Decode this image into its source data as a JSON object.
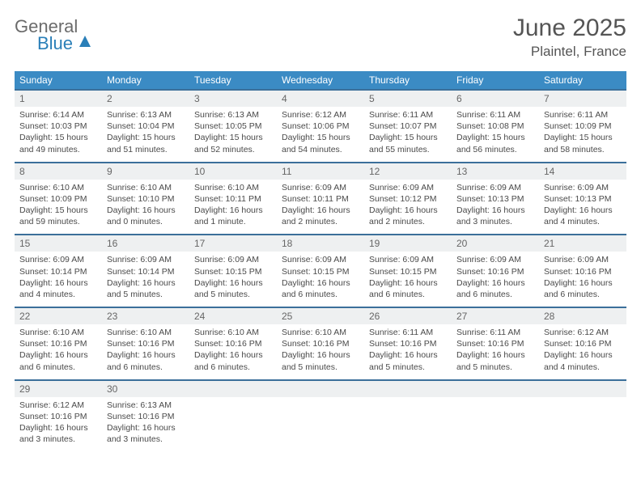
{
  "brand": {
    "part1": "General",
    "part2": "Blue"
  },
  "title": {
    "month": "June 2025",
    "location": "Plaintel, France"
  },
  "colors": {
    "header_bg": "#3b8bc4",
    "header_text": "#ffffff",
    "daynum_bg": "#eef0f1",
    "row_border": "#3b6f9a",
    "text": "#4a4a4a",
    "brand_blue": "#2a7fb8"
  },
  "weekdays": [
    "Sunday",
    "Monday",
    "Tuesday",
    "Wednesday",
    "Thursday",
    "Friday",
    "Saturday"
  ],
  "days": [
    {
      "n": "1",
      "sr": "6:14 AM",
      "ss": "10:03 PM",
      "dl": "15 hours and 49 minutes."
    },
    {
      "n": "2",
      "sr": "6:13 AM",
      "ss": "10:04 PM",
      "dl": "15 hours and 51 minutes."
    },
    {
      "n": "3",
      "sr": "6:13 AM",
      "ss": "10:05 PM",
      "dl": "15 hours and 52 minutes."
    },
    {
      "n": "4",
      "sr": "6:12 AM",
      "ss": "10:06 PM",
      "dl": "15 hours and 54 minutes."
    },
    {
      "n": "5",
      "sr": "6:11 AM",
      "ss": "10:07 PM",
      "dl": "15 hours and 55 minutes."
    },
    {
      "n": "6",
      "sr": "6:11 AM",
      "ss": "10:08 PM",
      "dl": "15 hours and 56 minutes."
    },
    {
      "n": "7",
      "sr": "6:11 AM",
      "ss": "10:09 PM",
      "dl": "15 hours and 58 minutes."
    },
    {
      "n": "8",
      "sr": "6:10 AM",
      "ss": "10:09 PM",
      "dl": "15 hours and 59 minutes."
    },
    {
      "n": "9",
      "sr": "6:10 AM",
      "ss": "10:10 PM",
      "dl": "16 hours and 0 minutes."
    },
    {
      "n": "10",
      "sr": "6:10 AM",
      "ss": "10:11 PM",
      "dl": "16 hours and 1 minute."
    },
    {
      "n": "11",
      "sr": "6:09 AM",
      "ss": "10:11 PM",
      "dl": "16 hours and 2 minutes."
    },
    {
      "n": "12",
      "sr": "6:09 AM",
      "ss": "10:12 PM",
      "dl": "16 hours and 2 minutes."
    },
    {
      "n": "13",
      "sr": "6:09 AM",
      "ss": "10:13 PM",
      "dl": "16 hours and 3 minutes."
    },
    {
      "n": "14",
      "sr": "6:09 AM",
      "ss": "10:13 PM",
      "dl": "16 hours and 4 minutes."
    },
    {
      "n": "15",
      "sr": "6:09 AM",
      "ss": "10:14 PM",
      "dl": "16 hours and 4 minutes."
    },
    {
      "n": "16",
      "sr": "6:09 AM",
      "ss": "10:14 PM",
      "dl": "16 hours and 5 minutes."
    },
    {
      "n": "17",
      "sr": "6:09 AM",
      "ss": "10:15 PM",
      "dl": "16 hours and 5 minutes."
    },
    {
      "n": "18",
      "sr": "6:09 AM",
      "ss": "10:15 PM",
      "dl": "16 hours and 6 minutes."
    },
    {
      "n": "19",
      "sr": "6:09 AM",
      "ss": "10:15 PM",
      "dl": "16 hours and 6 minutes."
    },
    {
      "n": "20",
      "sr": "6:09 AM",
      "ss": "10:16 PM",
      "dl": "16 hours and 6 minutes."
    },
    {
      "n": "21",
      "sr": "6:09 AM",
      "ss": "10:16 PM",
      "dl": "16 hours and 6 minutes."
    },
    {
      "n": "22",
      "sr": "6:10 AM",
      "ss": "10:16 PM",
      "dl": "16 hours and 6 minutes."
    },
    {
      "n": "23",
      "sr": "6:10 AM",
      "ss": "10:16 PM",
      "dl": "16 hours and 6 minutes."
    },
    {
      "n": "24",
      "sr": "6:10 AM",
      "ss": "10:16 PM",
      "dl": "16 hours and 6 minutes."
    },
    {
      "n": "25",
      "sr": "6:10 AM",
      "ss": "10:16 PM",
      "dl": "16 hours and 5 minutes."
    },
    {
      "n": "26",
      "sr": "6:11 AM",
      "ss": "10:16 PM",
      "dl": "16 hours and 5 minutes."
    },
    {
      "n": "27",
      "sr": "6:11 AM",
      "ss": "10:16 PM",
      "dl": "16 hours and 5 minutes."
    },
    {
      "n": "28",
      "sr": "6:12 AM",
      "ss": "10:16 PM",
      "dl": "16 hours and 4 minutes."
    },
    {
      "n": "29",
      "sr": "6:12 AM",
      "ss": "10:16 PM",
      "dl": "16 hours and 3 minutes."
    },
    {
      "n": "30",
      "sr": "6:13 AM",
      "ss": "10:16 PM",
      "dl": "16 hours and 3 minutes."
    }
  ],
  "labels": {
    "sunrise": "Sunrise: ",
    "sunset": "Sunset: ",
    "daylight": "Daylight: "
  }
}
